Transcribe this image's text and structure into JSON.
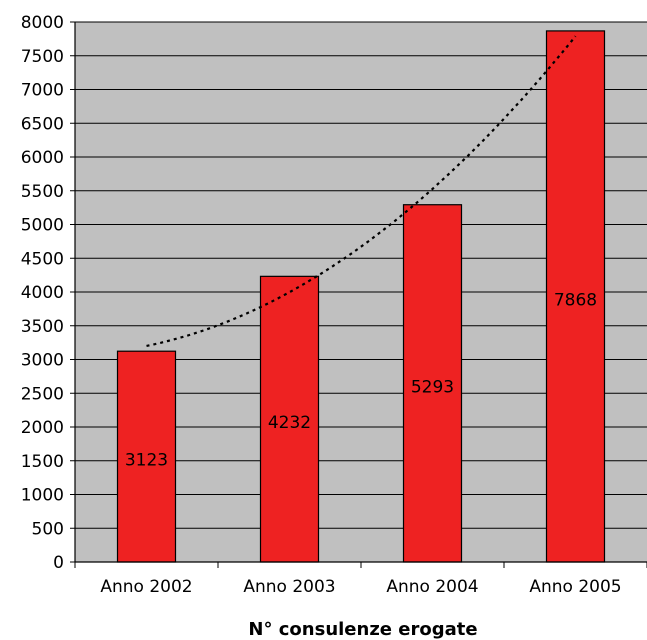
{
  "chart_data": {
    "type": "bar",
    "categories": [
      "Anno 2002",
      "Anno 2003",
      "Anno 2004",
      "Anno 2005"
    ],
    "values": [
      3123,
      4232,
      5293,
      7868
    ],
    "data_labels": [
      "3123",
      "4232",
      "5293",
      "7868"
    ],
    "title": "",
    "xlabel": "N° consulenze erogate",
    "ylabel": "",
    "ylim": [
      0,
      8000
    ],
    "yticks": [
      0,
      500,
      1000,
      1500,
      2000,
      2500,
      3000,
      3500,
      4000,
      4500,
      5000,
      5500,
      6000,
      6500,
      7000,
      7500,
      8000
    ],
    "trendline": {
      "style": "dotted",
      "type": "polynomial"
    },
    "grid": true,
    "legend": "none",
    "colors": {
      "bar": "#ee2222",
      "plot_background": "#c0c0c0",
      "gridline": "#000000",
      "trendline": "#000000"
    }
  }
}
